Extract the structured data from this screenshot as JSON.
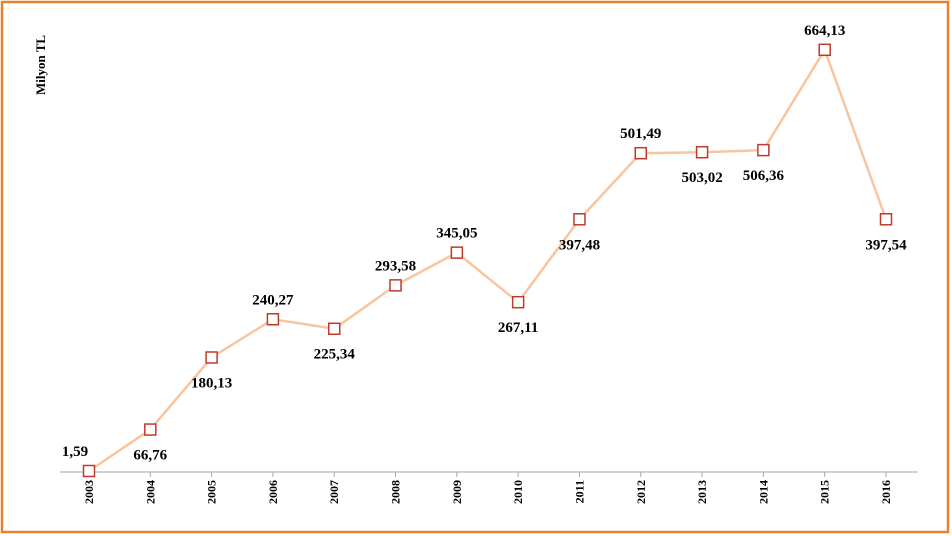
{
  "chart_data": {
    "type": "line",
    "y_axis_label": "Milyon TL",
    "categories": [
      "2003",
      "2004",
      "2005",
      "2006",
      "2007",
      "2008",
      "2009",
      "2010",
      "2011",
      "2012",
      "2013",
      "2014",
      "2015",
      "2016"
    ],
    "series": [
      {
        "name": "Milyon TL",
        "color": "#f7c59f",
        "marker_color": "#c0392b",
        "values": [
          1.59,
          66.76,
          180.13,
          240.27,
          225.34,
          293.58,
          345.05,
          267.11,
          397.48,
          501.49,
          503.02,
          506.36,
          664.13,
          397.54
        ],
        "value_labels": [
          "1,59",
          "66,76",
          "180,13",
          "240,27",
          "225,34",
          "293,58",
          "345,05",
          "267,11",
          "397,48",
          "501,49",
          "503,02",
          "506,36",
          "664,13",
          "397,54"
        ]
      }
    ],
    "ylim": [
      0,
      700
    ]
  }
}
